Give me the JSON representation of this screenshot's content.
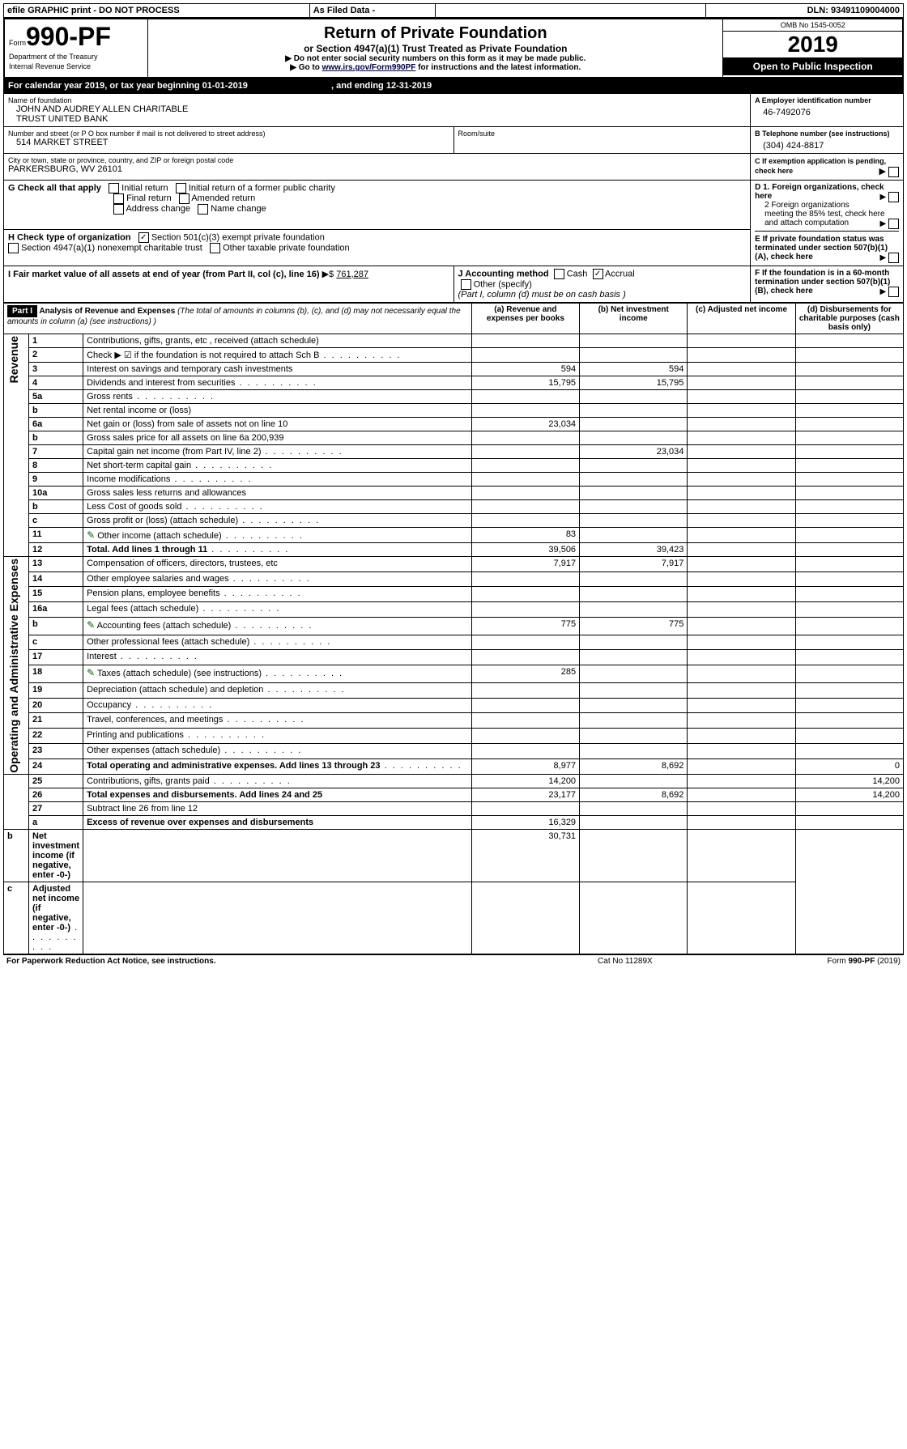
{
  "topbar": {
    "efile": "efile GRAPHIC print - DO NOT PROCESS",
    "asfiled": "As Filed Data -",
    "dln_label": "DLN:",
    "dln": "93491109004000"
  },
  "header": {
    "form_prefix": "Form",
    "form_number": "990-PF",
    "dept": "Department of the Treasury",
    "irs": "Internal Revenue Service",
    "title": "Return of Private Foundation",
    "subtitle": "or Section 4947(a)(1) Trust Treated as Private Foundation",
    "warn": "▶ Do not enter social security numbers on this form as it may be made public.",
    "goto_pre": "▶ Go to ",
    "goto_link": "www.irs.gov/Form990PF",
    "goto_post": " for instructions and the latest information.",
    "omb": "OMB No 1545-0052",
    "year": "2019",
    "inspect": "Open to Public Inspection"
  },
  "cal": {
    "text_pre": "For calendar year 2019, or tax year beginning ",
    "begin": "01-01-2019",
    "text_mid": ", and ending ",
    "end": "12-31-2019"
  },
  "id": {
    "name_label": "Name of foundation",
    "name": "JOHN AND AUDREY ALLEN CHARITABLE\nTRUST UNITED BANK",
    "addr_label": "Number and street (or P O  box number if mail is not delivered to street address)",
    "addr": "514 MARKET STREET",
    "room_label": "Room/suite",
    "city_label": "City or town, state or province, country, and ZIP or foreign postal code",
    "city": "PARKERSBURG, WV  26101",
    "a_label": "A Employer identification number",
    "a_val": "46-7492076",
    "b_label": "B Telephone number (see instructions)",
    "b_val": "(304) 424-8817",
    "c_label": "C If exemption application is pending, check here"
  },
  "g": {
    "label": "G Check all that apply",
    "o1": "Initial return",
    "o2": "Initial return of a former public charity",
    "o3": "Final return",
    "o4": "Amended return",
    "o5": "Address change",
    "o6": "Name change"
  },
  "h": {
    "label": "H Check type of organization",
    "o1": "Section 501(c)(3) exempt private foundation",
    "o2": "Section 4947(a)(1) nonexempt charitable trust",
    "o3": "Other taxable private foundation"
  },
  "i": {
    "label": "I Fair market value of all assets at end of year (from Part II, col  (c), line 16)",
    "val": "761,287"
  },
  "j": {
    "label": "J Accounting method",
    "o1": "Cash",
    "o2": "Accrual",
    "o3": "Other (specify)",
    "note": "(Part I, column (d) must be on cash basis )"
  },
  "d": {
    "d1": "D 1. Foreign organizations, check here",
    "d2": "2  Foreign organizations meeting the 85% test, check here and attach computation",
    "e": "E  If private foundation status was terminated under section 507(b)(1)(A), check here",
    "f": "F  If the foundation is in a 60-month termination under section 507(b)(1)(B), check here"
  },
  "part1": {
    "label": "Part I",
    "title": "Analysis of Revenue and Expenses",
    "note": " (The total of amounts in columns (b), (c), and (d) may not necessarily equal the amounts in column (a) (see instructions) )",
    "cols": {
      "a": "(a) Revenue and expenses per books",
      "b": "(b) Net investment income",
      "c": "(c) Adjusted net income",
      "d": "(d) Disbursements for charitable purposes (cash basis only)"
    }
  },
  "sidebar": {
    "revenue": "Revenue",
    "expenses": "Operating and Administrative Expenses"
  },
  "rows": [
    {
      "n": "1",
      "t": "Contributions, gifts, grants, etc , received (attach schedule)"
    },
    {
      "n": "2",
      "t": "Check ▶ ☑ if the foundation is not required to attach Sch  B",
      "dots": true
    },
    {
      "n": "3",
      "t": "Interest on savings and temporary cash investments",
      "a": "594",
      "b": "594"
    },
    {
      "n": "4",
      "t": "Dividends and interest from securities",
      "dots": true,
      "a": "15,795",
      "b": "15,795"
    },
    {
      "n": "5a",
      "t": "Gross rents",
      "dots": true
    },
    {
      "n": "b",
      "t": "Net rental income or (loss)"
    },
    {
      "n": "6a",
      "t": "Net gain or (loss) from sale of assets not on line 10",
      "a": "23,034"
    },
    {
      "n": "b",
      "t": "Gross sales price for all assets on line 6a          200,939"
    },
    {
      "n": "7",
      "t": "Capital gain net income (from Part IV, line 2)",
      "dots": true,
      "b": "23,034"
    },
    {
      "n": "8",
      "t": "Net short-term capital gain",
      "dots": true
    },
    {
      "n": "9",
      "t": "Income modifications",
      "dots": true
    },
    {
      "n": "10a",
      "t": "Gross sales less returns and allowances"
    },
    {
      "n": "b",
      "t": "Less  Cost of goods sold",
      "dots": true
    },
    {
      "n": "c",
      "t": "Gross profit or (loss) (attach schedule)",
      "dots": true
    },
    {
      "n": "11",
      "t": "Other income (attach schedule)",
      "dots": true,
      "icon": true,
      "a": "83"
    },
    {
      "n": "12",
      "t": "Total. Add lines 1 through 11",
      "bold": true,
      "dots": true,
      "a": "39,506",
      "b": "39,423"
    },
    {
      "n": "13",
      "t": "Compensation of officers, directors, trustees, etc",
      "a": "7,917",
      "b": "7,917"
    },
    {
      "n": "14",
      "t": "Other employee salaries and wages",
      "dots": true
    },
    {
      "n": "15",
      "t": "Pension plans, employee benefits",
      "dots": true
    },
    {
      "n": "16a",
      "t": "Legal fees (attach schedule)",
      "dots": true
    },
    {
      "n": "b",
      "t": "Accounting fees (attach schedule)",
      "dots": true,
      "icon": true,
      "a": "775",
      "b": "775"
    },
    {
      "n": "c",
      "t": "Other professional fees (attach schedule)",
      "dots": true
    },
    {
      "n": "17",
      "t": "Interest",
      "dots": true
    },
    {
      "n": "18",
      "t": "Taxes (attach schedule) (see instructions)",
      "dots": true,
      "icon": true,
      "a": "285"
    },
    {
      "n": "19",
      "t": "Depreciation (attach schedule) and depletion",
      "dots": true
    },
    {
      "n": "20",
      "t": "Occupancy",
      "dots": true
    },
    {
      "n": "21",
      "t": "Travel, conferences, and meetings",
      "dots": true
    },
    {
      "n": "22",
      "t": "Printing and publications",
      "dots": true
    },
    {
      "n": "23",
      "t": "Other expenses (attach schedule)",
      "dots": true
    },
    {
      "n": "24",
      "t": "Total operating and administrative expenses. Add lines 13 through 23",
      "bold": true,
      "dots": true,
      "a": "8,977",
      "b": "8,692",
      "d": "0"
    },
    {
      "n": "25",
      "t": "Contributions, gifts, grants paid",
      "dots": true,
      "a": "14,200",
      "d": "14,200"
    },
    {
      "n": "26",
      "t": "Total expenses and disbursements. Add lines 24 and 25",
      "bold": true,
      "a": "23,177",
      "b": "8,692",
      "d": "14,200"
    },
    {
      "n": "27",
      "t": "Subtract line 26 from line 12"
    },
    {
      "n": "a",
      "t": "Excess of revenue over expenses and disbursements",
      "bold": true,
      "a": "16,329"
    },
    {
      "n": "b",
      "t": "Net investment income (if negative, enter -0-)",
      "bold": true,
      "b": "30,731"
    },
    {
      "n": "c",
      "t": "Adjusted net income (if negative, enter -0-)",
      "bold": true,
      "dots": true
    }
  ],
  "footer": {
    "left": "For Paperwork Reduction Act Notice, see instructions.",
    "mid": "Cat  No  11289X",
    "right": "Form 990-PF (2019)"
  }
}
